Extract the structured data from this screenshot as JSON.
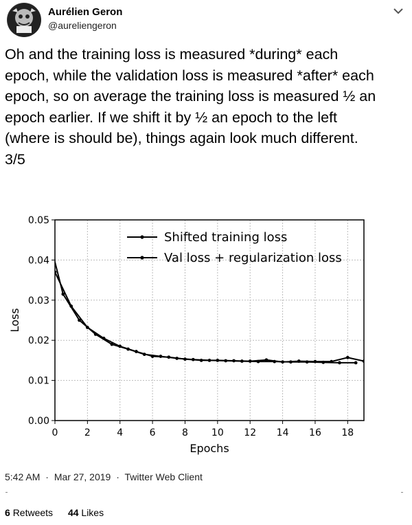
{
  "author": {
    "name": "Aurélien Geron",
    "handle": "@aureliengeron"
  },
  "tweet": {
    "text": "Oh and the training loss is measured *during* each\nepoch, while the validation loss is measured *after* each\nepoch, so on average the training loss is measured ½ an\nepoch earlier. If we shift it by ½ an epoch to the left\n(where is should be), things again look much different.\n3/5"
  },
  "meta": {
    "time": "5:42 AM",
    "date": "Mar 27, 2019",
    "client": "Twitter Web Client",
    "separator": "·"
  },
  "stats": {
    "retweets_count": "6",
    "retweets_label": "Retweets",
    "likes_count": "44",
    "likes_label": "Likes"
  },
  "icons": {
    "caret": "chevron-down-icon"
  },
  "chart_data": {
    "type": "line",
    "xlabel": "Epochs",
    "ylabel": "Loss",
    "xlim": [
      0,
      19
    ],
    "ylim": [
      0,
      0.05
    ],
    "xticks": [
      "0",
      "2",
      "4",
      "6",
      "8",
      "10",
      "12",
      "14",
      "16",
      "18"
    ],
    "yticks": [
      "0.00",
      "0.01",
      "0.02",
      "0.03",
      "0.04",
      "0.05"
    ],
    "legend_position": "top-right",
    "grid": true,
    "series": [
      {
        "name": "Shifted training loss",
        "x": [
          -0.5,
          0.5,
          1.5,
          2.5,
          3.5,
          4.5,
          5.5,
          6.5,
          7.5,
          8.5,
          9.5,
          10.5,
          11.5,
          12.5,
          13.5,
          14.5,
          15.5,
          16.5,
          17.5,
          18.5
        ],
        "y": [
          0.0475,
          0.0315,
          0.025,
          0.0215,
          0.019,
          0.0178,
          0.0165,
          0.016,
          0.0155,
          0.0152,
          0.015,
          0.0149,
          0.0148,
          0.0147,
          0.0147,
          0.0146,
          0.0146,
          0.0145,
          0.0144,
          0.0144
        ]
      },
      {
        "name": "Val loss + regularization loss",
        "x": [
          0,
          1,
          2,
          3,
          4,
          5,
          6,
          7,
          8,
          9,
          10,
          11,
          12,
          13,
          14,
          15,
          16,
          17,
          18,
          19
        ],
        "y": [
          0.037,
          0.0285,
          0.0232,
          0.0205,
          0.0185,
          0.0172,
          0.016,
          0.0158,
          0.0153,
          0.015,
          0.015,
          0.0149,
          0.0148,
          0.0151,
          0.0146,
          0.0148,
          0.0147,
          0.0147,
          0.0157,
          0.0148
        ]
      }
    ]
  }
}
